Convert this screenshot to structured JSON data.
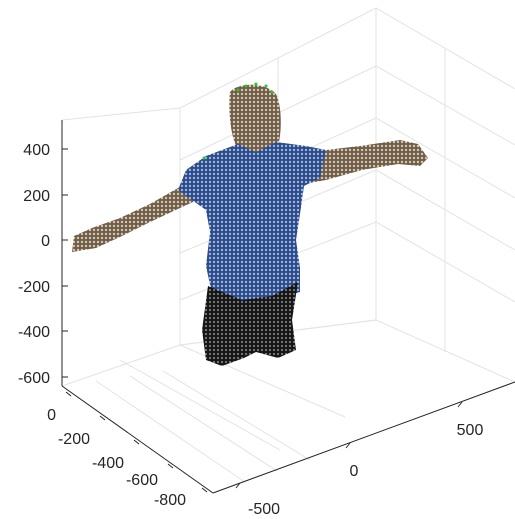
{
  "chart_data": {
    "type": "scatter",
    "subtype": "3d-point-cloud",
    "title": "",
    "xlabel": "",
    "ylabel": "",
    "zlabel": "",
    "grid": true,
    "x_axis": {
      "ticks": [
        -500,
        0,
        500
      ],
      "tick_labels": [
        "-500",
        "0",
        "500"
      ]
    },
    "y_axis": {
      "ticks": [
        0,
        -200,
        -400,
        -600,
        -800
      ],
      "tick_labels": [
        "0",
        "-200",
        "-400",
        "-600",
        "-800"
      ]
    },
    "z_axis": {
      "ticks": [
        400,
        200,
        0,
        -200,
        -400,
        -600
      ],
      "tick_labels": [
        "400",
        "200",
        "0",
        "-200",
        "-400",
        "-600"
      ]
    },
    "point_cloud": {
      "subject": "person with arms outstretched (T-pose), visible from head to thighs",
      "colors": {
        "skin": "#a08a72",
        "shirt": "#4a68a6",
        "shorts": "#2b2b2b",
        "marker": "#22cc22"
      }
    }
  }
}
